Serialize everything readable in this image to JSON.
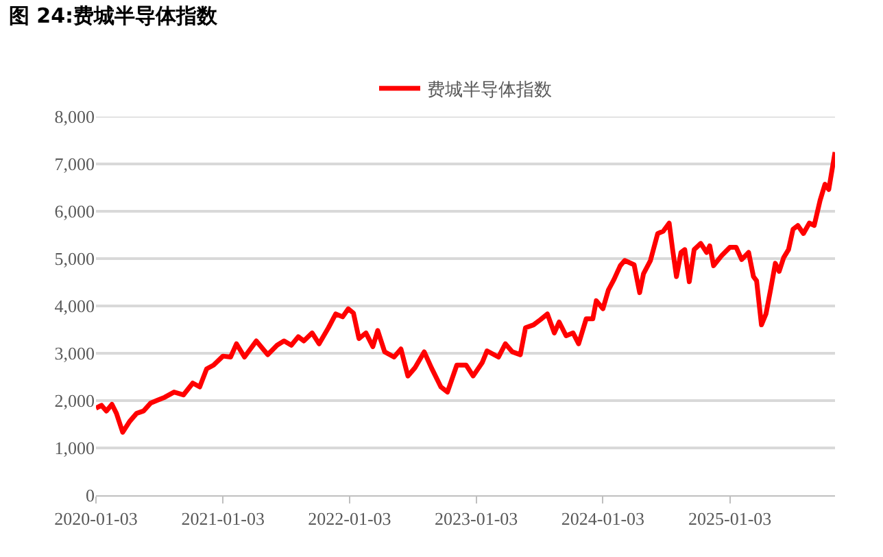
{
  "chart_data": {
    "type": "line",
    "title": "图 24:费城半导体指数",
    "x": [
      "2020-01-03",
      "2020-01-19",
      "2020-02-02",
      "2020-02-18",
      "2020-03-02",
      "2020-03-20",
      "2020-04-09",
      "2020-04-29",
      "2020-05-19",
      "2020-06-09",
      "2020-06-29",
      "2020-07-19",
      "2020-08-15",
      "2020-09-11",
      "2020-10-08",
      "2020-10-28",
      "2020-11-17",
      "2020-12-07",
      "2021-01-03",
      "2021-01-25",
      "2021-02-11",
      "2021-03-06",
      "2021-04-09",
      "2021-05-12",
      "2021-06-08",
      "2021-06-28",
      "2021-07-19",
      "2021-08-08",
      "2021-08-24",
      "2021-09-17",
      "2021-10-07",
      "2021-11-03",
      "2021-11-24",
      "2021-12-14",
      "2021-12-30",
      "2022-01-14",
      "2022-01-30",
      "2022-02-19",
      "2022-03-11",
      "2022-03-25",
      "2022-04-14",
      "2022-05-11",
      "2022-05-31",
      "2022-06-20",
      "2022-07-10",
      "2022-08-06",
      "2022-08-27",
      "2022-09-23",
      "2022-10-12",
      "2022-11-08",
      "2022-12-05",
      "2022-12-25",
      "2023-01-20",
      "2023-02-03",
      "2023-03-08",
      "2023-03-28",
      "2023-04-17",
      "2023-05-10",
      "2023-05-25",
      "2023-06-17",
      "2023-07-07",
      "2023-07-27",
      "2023-08-16",
      "2023-08-30",
      "2023-09-19",
      "2023-10-09",
      "2023-10-25",
      "2023-11-16",
      "2023-12-05",
      "2023-12-15",
      "2024-01-03",
      "2024-01-19",
      "2024-02-04",
      "2024-02-22",
      "2024-03-06",
      "2024-04-02",
      "2024-04-18",
      "2024-04-29",
      "2024-05-19",
      "2024-06-09",
      "2024-06-25",
      "2024-07-12",
      "2024-07-22",
      "2024-08-02",
      "2024-08-15",
      "2024-08-26",
      "2024-09-08",
      "2024-09-22",
      "2024-10-11",
      "2024-10-28",
      "2024-11-06",
      "2024-11-17",
      "2024-12-11",
      "2025-01-03",
      "2025-01-21",
      "2025-02-06",
      "2025-02-26",
      "2025-03-12",
      "2025-03-21",
      "2025-04-04",
      "2025-04-17",
      "2025-05-01",
      "2025-05-14",
      "2025-05-25",
      "2025-06-07",
      "2025-06-21",
      "2025-07-04",
      "2025-07-18",
      "2025-08-03",
      "2025-08-20",
      "2025-09-03",
      "2025-09-20",
      "2025-10-04",
      "2025-10-15",
      "2025-11-02"
    ],
    "series": [
      {
        "name": "费城半导体指数",
        "color": "#ff0000",
        "values": [
          1840,
          1900,
          1780,
          1920,
          1730,
          1330,
          1560,
          1730,
          1780,
          1950,
          2010,
          2070,
          2180,
          2120,
          2370,
          2290,
          2670,
          2750,
          2940,
          2920,
          3200,
          2920,
          3260,
          2970,
          3170,
          3260,
          3170,
          3350,
          3260,
          3430,
          3200,
          3540,
          3830,
          3770,
          3940,
          3850,
          3310,
          3430,
          3140,
          3480,
          3030,
          2920,
          3090,
          2520,
          2690,
          3030,
          2690,
          2290,
          2180,
          2750,
          2750,
          2520,
          2800,
          3050,
          2920,
          3200,
          3030,
          2970,
          3540,
          3600,
          3710,
          3830,
          3430,
          3660,
          3370,
          3430,
          3200,
          3730,
          3730,
          4110,
          3940,
          4340,
          4560,
          4850,
          4960,
          4870,
          4280,
          4680,
          4960,
          5530,
          5580,
          5750,
          5190,
          4620,
          5130,
          5190,
          4510,
          5190,
          5320,
          5130,
          5270,
          4850,
          5070,
          5240,
          5240,
          4980,
          5130,
          4620,
          4530,
          3600,
          3830,
          4370,
          4900,
          4730,
          5020,
          5190,
          5620,
          5700,
          5530,
          5750,
          5700,
          6230,
          6570,
          6460,
          7250
        ]
      }
    ],
    "xlim": [
      "2020-01-03",
      "2025-11-02"
    ],
    "xticks": [
      "2020-01-03",
      "2021-01-03",
      "2022-01-03",
      "2023-01-03",
      "2024-01-03",
      "2025-01-03"
    ],
    "ylim": [
      0,
      8000
    ],
    "yticks": [
      {
        "value": 0,
        "label": "0"
      },
      {
        "value": 1000,
        "label": "1,000"
      },
      {
        "value": 2000,
        "label": "2,000"
      },
      {
        "value": 3000,
        "label": "3,000"
      },
      {
        "value": 4000,
        "label": "4,000"
      },
      {
        "value": 5000,
        "label": "5,000"
      },
      {
        "value": 6000,
        "label": "6,000"
      },
      {
        "value": 7000,
        "label": "7,000"
      },
      {
        "value": 8000,
        "label": "8,000"
      }
    ],
    "grid": "y",
    "legend": "top",
    "marker": "none",
    "line_style": "solid"
  }
}
